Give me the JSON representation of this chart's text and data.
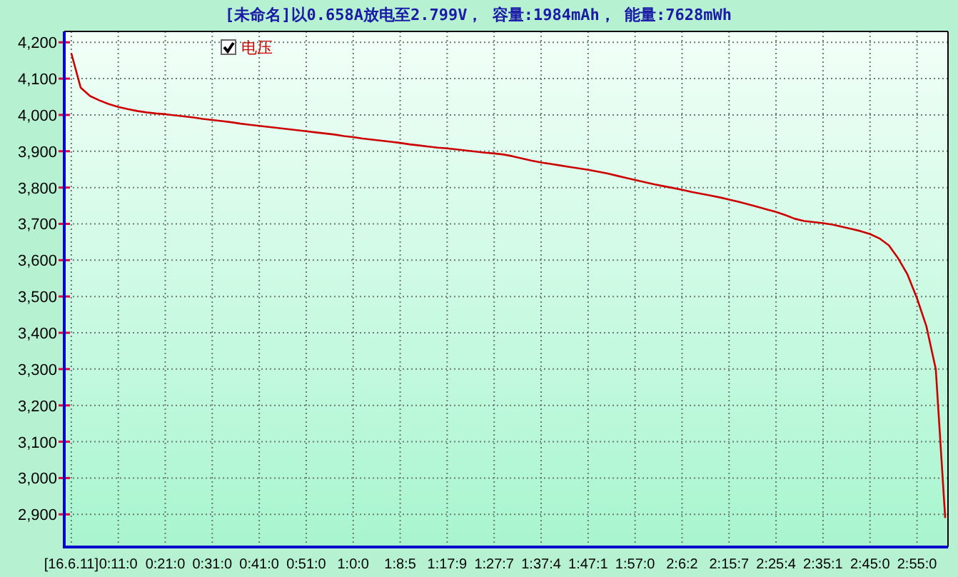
{
  "chart_data": {
    "type": "line",
    "title": "[未命名]以0.658A放电至2.799V， 容量:1984mAh， 能量:7628mWh",
    "categories": [
      "[16.6.11]",
      null,
      null,
      null,
      null,
      "0:11:0",
      null,
      null,
      null,
      null,
      "0:21:0",
      null,
      null,
      null,
      null,
      "0:31:0",
      null,
      null,
      null,
      null,
      "0:41:0",
      null,
      null,
      null,
      null,
      "0:51:0",
      null,
      null,
      null,
      null,
      "1:0:0",
      null,
      null,
      null,
      null,
      "1:8:5",
      null,
      null,
      null,
      null,
      "1:17:9",
      null,
      null,
      null,
      null,
      "1:27:7",
      null,
      null,
      null,
      null,
      "1:37:4",
      null,
      null,
      null,
      null,
      "1:47:1",
      null,
      null,
      null,
      null,
      "1:57:0",
      null,
      null,
      null,
      null,
      "2:6:2",
      null,
      null,
      null,
      null,
      "2:15:7",
      null,
      null,
      null,
      null,
      "2:25:4",
      null,
      null,
      null,
      null,
      "2:35:1",
      null,
      null,
      null,
      null,
      "2:45:0",
      null,
      null,
      null,
      null,
      "2:55:0",
      null,
      null,
      null
    ],
    "series": [
      {
        "name": "电压",
        "color": "#cc0000",
        "values": [
          4170,
          4075,
          4052,
          4040,
          4030,
          4022,
          4016,
          4011,
          4007,
          4004,
          4002,
          3999,
          3996,
          3993,
          3989,
          3986,
          3983,
          3980,
          3976,
          3973,
          3970,
          3967,
          3964,
          3961,
          3958,
          3955,
          3952,
          3949,
          3946,
          3942,
          3939,
          3935,
          3932,
          3929,
          3926,
          3923,
          3919,
          3916,
          3913,
          3910,
          3908,
          3905,
          3902,
          3899,
          3896,
          3894,
          3891,
          3886,
          3880,
          3874,
          3869,
          3865,
          3861,
          3857,
          3853,
          3849,
          3844,
          3839,
          3833,
          3827,
          3821,
          3815,
          3809,
          3804,
          3799,
          3794,
          3788,
          3783,
          3778,
          3773,
          3767,
          3761,
          3754,
          3747,
          3740,
          3733,
          3724,
          3714,
          3708,
          3705,
          3702,
          3698,
          3692,
          3686,
          3680,
          3672,
          3660,
          3641,
          3605,
          3560,
          3495,
          3418,
          3300,
          2890
        ]
      }
    ],
    "ylim": [
      2810,
      4230
    ],
    "yticks": [
      {
        "value": 2900,
        "label": "2,900"
      },
      {
        "value": 3000,
        "label": "3,000"
      },
      {
        "value": 3100,
        "label": "3,100"
      },
      {
        "value": 3200,
        "label": "3,200"
      },
      {
        "value": 3300,
        "label": "3,300"
      },
      {
        "value": 3400,
        "label": "3,400"
      },
      {
        "value": 3500,
        "label": "3,500"
      },
      {
        "value": 3600,
        "label": "3,600"
      },
      {
        "value": 3700,
        "label": "3,700"
      },
      {
        "value": 3800,
        "label": "3,800"
      },
      {
        "value": 3900,
        "label": "3,900"
      },
      {
        "value": 4000,
        "label": "4,000"
      },
      {
        "value": 4100,
        "label": "4,100"
      },
      {
        "value": 4200,
        "label": "4,200"
      }
    ],
    "grid": true,
    "legend": "top left"
  }
}
